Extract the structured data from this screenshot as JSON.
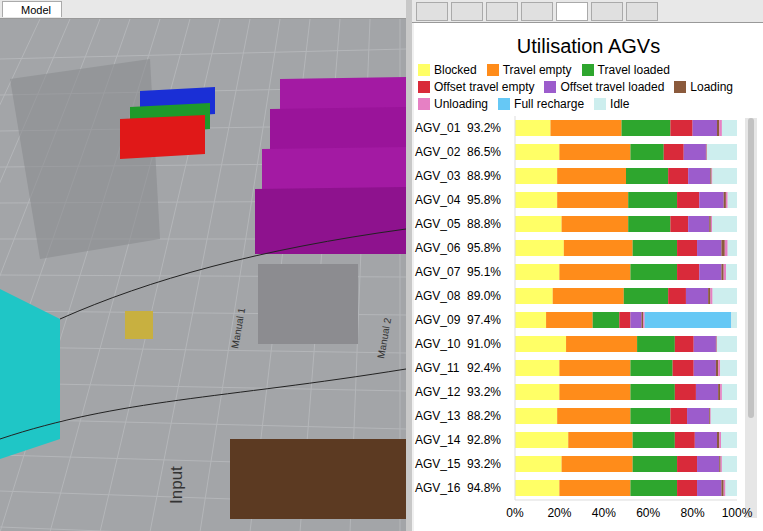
{
  "window": {
    "tab": "Model",
    "model_labels": [
      "Input",
      "Manual 1",
      "Manual 2"
    ]
  },
  "chart_data": {
    "type": "bar",
    "orientation": "horizontal",
    "stacked": true,
    "title": "Utilisation AGVs",
    "legend": "top",
    "grid": false,
    "categories": [
      "AGV_01",
      "AGV_02",
      "AGV_03",
      "AGV_04",
      "AGV_05",
      "AGV_06",
      "AGV_07",
      "AGV_08",
      "AGV_09",
      "AGV_10",
      "AGV_11",
      "AGV_12",
      "AGV_13",
      "AGV_14",
      "AGV_15",
      "AGV_16"
    ],
    "utilisation_labels": [
      "93.2%",
      "86.5%",
      "88.9%",
      "95.8%",
      "88.8%",
      "95.8%",
      "95.1%",
      "89.0%",
      "97.4%",
      "91.0%",
      "92.4%",
      "93.2%",
      "88.2%",
      "92.8%",
      "93.2%",
      "94.8%"
    ],
    "series": [
      {
        "name": "Blocked",
        "color": "#ffff66",
        "values": [
          16,
          20,
          19,
          19,
          21,
          22,
          20,
          17,
          14,
          23,
          20,
          20,
          19,
          24,
          21,
          20
        ]
      },
      {
        "name": "Travel empty",
        "color": "#ff8c1a",
        "values": [
          32,
          32,
          31,
          32,
          30,
          31,
          32,
          32,
          21,
          32,
          32,
          32,
          33,
          29,
          32,
          32
        ]
      },
      {
        "name": "Travel loaded",
        "color": "#2ea62e",
        "values": [
          22,
          15,
          19,
          22,
          19,
          20,
          21,
          20,
          12,
          17,
          19,
          20,
          18,
          19,
          20,
          21
        ]
      },
      {
        "name": "Offset travel empty",
        "color": "#d92a3a",
        "values": [
          10,
          9,
          9,
          10,
          8,
          9,
          10,
          8,
          5,
          8.5,
          9.5,
          9.5,
          7.5,
          9,
          9,
          9
        ]
      },
      {
        "name": "Offset travel loaded",
        "color": "#9c5ccc",
        "values": [
          11,
          10,
          10,
          11,
          9.5,
          11,
          10,
          10,
          5,
          10,
          10,
          10,
          10,
          10,
          10,
          11
        ]
      },
      {
        "name": "Loading",
        "color": "#8b5a3c",
        "values": [
          1,
          0.3,
          0.5,
          1,
          0.7,
          1.5,
          1,
          1,
          0.7,
          0.3,
          1,
          0.9,
          0.4,
          1,
          0.6,
          1
        ]
      },
      {
        "name": "Unloading",
        "color": "#e680c4",
        "values": [
          1.2,
          0.2,
          0.4,
          0.8,
          0.6,
          1.3,
          1.1,
          1,
          0.7,
          0.2,
          0.9,
          0.8,
          0.3,
          0.8,
          0.6,
          0.8
        ]
      },
      {
        "name": "Full recharge",
        "color": "#66c8f5",
        "values": [
          0,
          0,
          0,
          0,
          0,
          0,
          0,
          0,
          39,
          0,
          0,
          0,
          0,
          0,
          0,
          0
        ]
      },
      {
        "name": "Idle",
        "color": "#cdeeee",
        "values": [
          6.8,
          13.5,
          11.1,
          4.2,
          11.2,
          4.2,
          4.9,
          11,
          2.6,
          9,
          7.6,
          6.8,
          11.8,
          7.2,
          6.8,
          5.2
        ]
      }
    ],
    "xlim": [
      0,
      100
    ],
    "xticks": [
      {
        "value": 0,
        "label": "0%"
      },
      {
        "value": 20,
        "label": "20%"
      },
      {
        "value": 40,
        "label": "40%"
      },
      {
        "value": 60,
        "label": "60%"
      },
      {
        "value": 80,
        "label": "80%"
      },
      {
        "value": 100,
        "label": "100%"
      }
    ]
  }
}
